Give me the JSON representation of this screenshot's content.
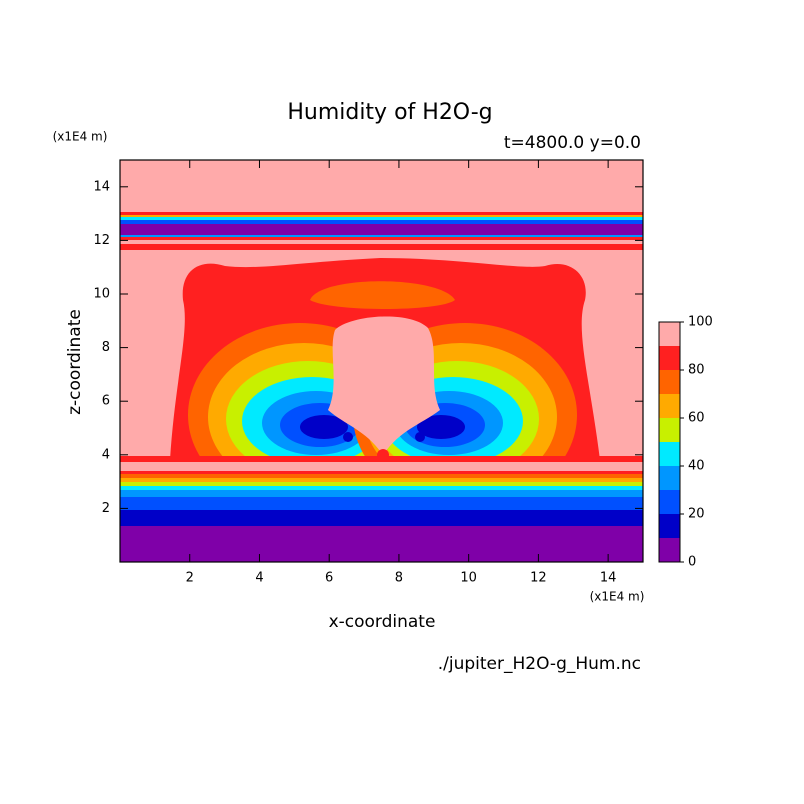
{
  "chart_data": {
    "type": "contour",
    "title": "Humidity of H2O-g",
    "subtitle": "t=4800.0 y=0.0",
    "x_label": "x-coordinate",
    "y_label": "z-coordinate",
    "x_unit": "(x1E4 m)",
    "y_unit": "(x1E4 m)",
    "source": "./jupiter_H2O-g_Hum.nc",
    "xlim": [
      0,
      15
    ],
    "ylim": [
      0,
      15
    ],
    "xticks": [
      2,
      4,
      6,
      8,
      10,
      12,
      14
    ],
    "yticks": [
      2,
      4,
      6,
      8,
      10,
      12,
      14
    ],
    "levels": [
      0,
      10,
      20,
      30,
      40,
      50,
      60,
      70,
      80,
      90,
      100
    ],
    "colors": [
      "#7f00a8",
      "#0000c8",
      "#0050ff",
      "#0096ff",
      "#00eaff",
      "#c8f000",
      "#ffaa00",
      "#ff6400",
      "#ff2020",
      "#ffaaaa"
    ],
    "colorbar_ticks": [
      0,
      20,
      40,
      60,
      80,
      100
    ]
  }
}
